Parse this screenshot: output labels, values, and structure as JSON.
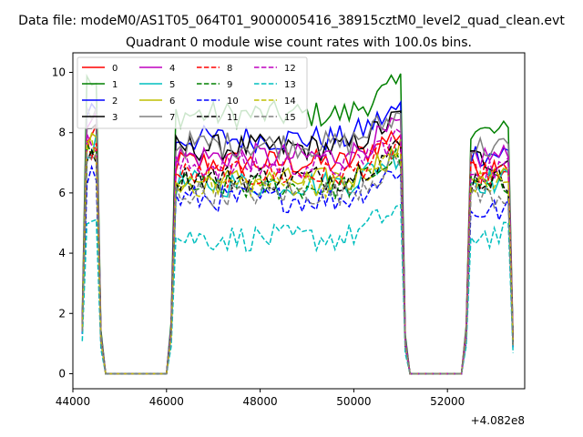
{
  "window_title": "Data file: modeM0/AS1T05_064T01_9000005416_38915cztM0_level2_quad_clean.evt",
  "chart_data": {
    "type": "line",
    "title": "Quadrant 0 module wise count rates with 100.0s bins.",
    "xlabel": "",
    "ylabel": "",
    "x_offset_label": "+4.082e8",
    "xlim": [
      44000,
      53650
    ],
    "ylim": [
      -0.5,
      10.65
    ],
    "xticks": [
      44000,
      46000,
      48000,
      50000,
      52000
    ],
    "yticks": [
      0,
      2,
      4,
      6,
      8,
      10
    ],
    "grid": false,
    "legend": {
      "placement": "top-left",
      "columns": 4
    },
    "segments": [
      {
        "start": 44200,
        "end": 44600
      },
      {
        "start": 46100,
        "end": 51100
      },
      {
        "start": 52400,
        "end": 53400
      }
    ],
    "series": [
      {
        "name": "0",
        "color": "#ff0000",
        "dash": "solid",
        "levels": [
          7.8,
          7.0,
          6.9
        ]
      },
      {
        "name": "1",
        "color": "#008000",
        "dash": "solid",
        "levels": [
          9.6,
          8.6,
          8.0
        ]
      },
      {
        "name": "2",
        "color": "#0000ff",
        "dash": "solid",
        "levels": [
          8.8,
          7.8,
          7.3
        ]
      },
      {
        "name": "3",
        "color": "#000000",
        "dash": "solid",
        "levels": [
          8.2,
          7.5,
          7.1
        ]
      },
      {
        "name": "4",
        "color": "#bf00bf",
        "dash": "solid",
        "levels": [
          8.3,
          7.2,
          7.2
        ]
      },
      {
        "name": "5",
        "color": "#00bfbf",
        "dash": "solid",
        "levels": [
          7.5,
          6.3,
          6.4
        ]
      },
      {
        "name": "6",
        "color": "#bfbf00",
        "dash": "solid",
        "levels": [
          7.6,
          6.4,
          6.6
        ]
      },
      {
        "name": "7",
        "color": "#808080",
        "dash": "solid",
        "levels": [
          8.6,
          7.6,
          7.5
        ]
      },
      {
        "name": "8",
        "color": "#ff0000",
        "dash": "dashed",
        "levels": [
          7.5,
          6.6,
          6.6
        ]
      },
      {
        "name": "9",
        "color": "#008000",
        "dash": "dashed",
        "levels": [
          7.2,
          6.2,
          6.2
        ]
      },
      {
        "name": "10",
        "color": "#0000ff",
        "dash": "dashed",
        "levels": [
          6.6,
          5.8,
          5.4
        ]
      },
      {
        "name": "11",
        "color": "#000000",
        "dash": "dashed",
        "levels": [
          7.4,
          6.5,
          6.4
        ]
      },
      {
        "name": "12",
        "color": "#bf00bf",
        "dash": "dashed",
        "levels": [
          7.6,
          6.9,
          6.8
        ]
      },
      {
        "name": "13",
        "color": "#00bfbf",
        "dash": "dashed",
        "levels": [
          5.4,
          4.5,
          4.6
        ]
      },
      {
        "name": "14",
        "color": "#bfbf00",
        "dash": "dashed",
        "levels": [
          7.4,
          6.3,
          6.3
        ]
      },
      {
        "name": "15",
        "color": "#808080",
        "dash": "dashed",
        "levels": [
          7.0,
          6.0,
          5.9
        ]
      }
    ]
  }
}
